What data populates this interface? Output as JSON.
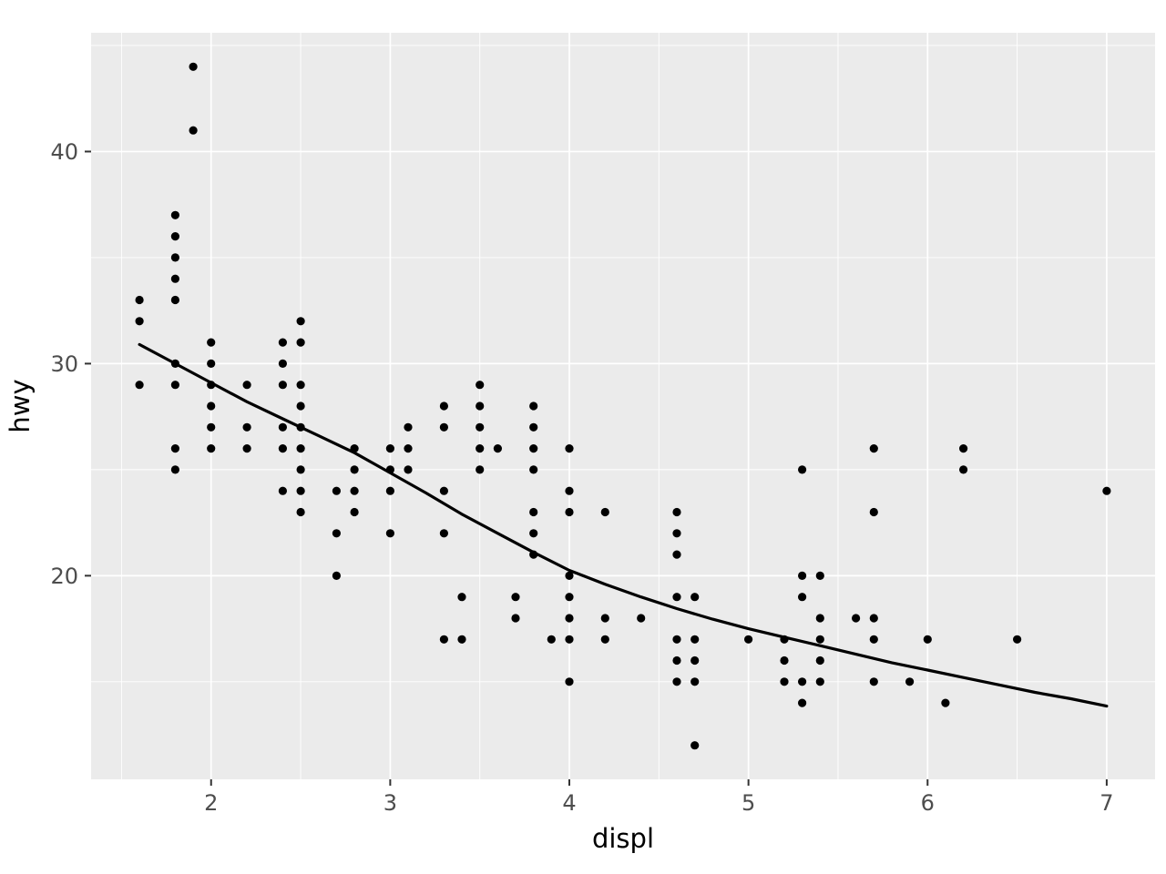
{
  "chart_data": {
    "type": "scatter",
    "title": "",
    "xlabel": "displ",
    "ylabel": "hwy",
    "x_ticks": [
      2,
      3,
      4,
      5,
      6,
      7
    ],
    "y_ticks": [
      20,
      30,
      40
    ],
    "x_minor_gridlines": [
      1.5,
      2.5,
      3.5,
      4.5,
      5.5,
      6.5
    ],
    "y_minor_gridlines": [
      15,
      25,
      35,
      45
    ],
    "xlim": [
      1.33,
      7.27
    ],
    "ylim": [
      10.4,
      45.6
    ],
    "grid": "white major and minor gridlines on gray panel",
    "legend": "none",
    "colors": {
      "panel_bg": "#EBEBEB",
      "gridline": "#FFFFFF",
      "point": "#000000",
      "smooth_line": "#000000",
      "tick_mark": "#333333",
      "tick_label": "#4D4D4D",
      "axis_title": "#000000",
      "outer_bg": "#FFFFFF"
    },
    "points": [
      [
        1.6,
        33
      ],
      [
        1.6,
        32
      ],
      [
        1.6,
        29
      ],
      [
        1.8,
        37
      ],
      [
        1.8,
        36
      ],
      [
        1.8,
        35
      ],
      [
        1.8,
        34
      ],
      [
        1.8,
        33
      ],
      [
        1.8,
        30
      ],
      [
        1.8,
        29
      ],
      [
        1.8,
        26
      ],
      [
        1.8,
        25
      ],
      [
        1.9,
        44
      ],
      [
        1.9,
        41
      ],
      [
        2.0,
        31
      ],
      [
        2.0,
        30
      ],
      [
        2.0,
        29
      ],
      [
        2.0,
        28
      ],
      [
        2.0,
        27
      ],
      [
        2.0,
        26
      ],
      [
        2.2,
        29
      ],
      [
        2.2,
        27
      ],
      [
        2.2,
        26
      ],
      [
        2.4,
        31
      ],
      [
        2.4,
        30
      ],
      [
        2.4,
        29
      ],
      [
        2.4,
        27
      ],
      [
        2.4,
        26
      ],
      [
        2.4,
        24
      ],
      [
        2.5,
        32
      ],
      [
        2.5,
        31
      ],
      [
        2.5,
        29
      ],
      [
        2.5,
        28
      ],
      [
        2.5,
        27
      ],
      [
        2.5,
        26
      ],
      [
        2.5,
        25
      ],
      [
        2.5,
        24
      ],
      [
        2.5,
        23
      ],
      [
        2.7,
        24
      ],
      [
        2.7,
        22
      ],
      [
        2.7,
        20
      ],
      [
        2.8,
        26
      ],
      [
        2.8,
        25
      ],
      [
        2.8,
        24
      ],
      [
        2.8,
        23
      ],
      [
        3.0,
        26
      ],
      [
        3.0,
        25
      ],
      [
        3.0,
        24
      ],
      [
        3.0,
        22
      ],
      [
        3.1,
        27
      ],
      [
        3.1,
        26
      ],
      [
        3.1,
        25
      ],
      [
        3.3,
        28
      ],
      [
        3.3,
        27
      ],
      [
        3.3,
        24
      ],
      [
        3.3,
        22
      ],
      [
        3.3,
        17
      ],
      [
        3.4,
        19
      ],
      [
        3.4,
        17
      ],
      [
        3.5,
        29
      ],
      [
        3.5,
        28
      ],
      [
        3.5,
        27
      ],
      [
        3.5,
        26
      ],
      [
        3.5,
        25
      ],
      [
        3.6,
        26
      ],
      [
        3.7,
        19
      ],
      [
        3.7,
        18
      ],
      [
        3.8,
        28
      ],
      [
        3.8,
        27
      ],
      [
        3.8,
        26
      ],
      [
        3.8,
        25
      ],
      [
        3.8,
        23
      ],
      [
        3.8,
        22
      ],
      [
        3.8,
        21
      ],
      [
        3.9,
        17
      ],
      [
        4.0,
        26
      ],
      [
        4.0,
        24
      ],
      [
        4.0,
        23
      ],
      [
        4.0,
        20
      ],
      [
        4.0,
        19
      ],
      [
        4.0,
        18
      ],
      [
        4.0,
        17
      ],
      [
        4.0,
        15
      ],
      [
        4.2,
        23
      ],
      [
        4.2,
        18
      ],
      [
        4.2,
        17
      ],
      [
        4.4,
        18
      ],
      [
        4.6,
        23
      ],
      [
        4.6,
        22
      ],
      [
        4.6,
        21
      ],
      [
        4.6,
        19
      ],
      [
        4.6,
        17
      ],
      [
        4.6,
        16
      ],
      [
        4.6,
        15
      ],
      [
        4.7,
        19
      ],
      [
        4.7,
        17
      ],
      [
        4.7,
        16
      ],
      [
        4.7,
        15
      ],
      [
        4.7,
        12
      ],
      [
        5.0,
        17
      ],
      [
        5.2,
        17
      ],
      [
        5.2,
        16
      ],
      [
        5.2,
        15
      ],
      [
        5.3,
        25
      ],
      [
        5.3,
        20
      ],
      [
        5.3,
        19
      ],
      [
        5.3,
        15
      ],
      [
        5.3,
        14
      ],
      [
        5.4,
        20
      ],
      [
        5.4,
        18
      ],
      [
        5.4,
        17
      ],
      [
        5.4,
        16
      ],
      [
        5.4,
        15
      ],
      [
        5.6,
        18
      ],
      [
        5.7,
        26
      ],
      [
        5.7,
        23
      ],
      [
        5.7,
        18
      ],
      [
        5.7,
        17
      ],
      [
        5.7,
        15
      ],
      [
        5.9,
        15
      ],
      [
        6.0,
        17
      ],
      [
        6.1,
        14
      ],
      [
        6.2,
        26
      ],
      [
        6.2,
        25
      ],
      [
        6.5,
        17
      ],
      [
        7.0,
        24
      ]
    ],
    "smooth_line": [
      [
        1.6,
        30.9
      ],
      [
        1.8,
        30.0
      ],
      [
        2.0,
        29.1
      ],
      [
        2.2,
        28.2
      ],
      [
        2.4,
        27.4
      ],
      [
        2.6,
        26.6
      ],
      [
        2.8,
        25.8
      ],
      [
        3.0,
        24.85
      ],
      [
        3.2,
        23.9
      ],
      [
        3.4,
        22.9
      ],
      [
        3.6,
        22.0
      ],
      [
        3.8,
        21.1
      ],
      [
        4.0,
        20.25
      ],
      [
        4.2,
        19.6
      ],
      [
        4.4,
        19.0
      ],
      [
        4.6,
        18.45
      ],
      [
        4.8,
        17.95
      ],
      [
        5.0,
        17.5
      ],
      [
        5.2,
        17.1
      ],
      [
        5.4,
        16.7
      ],
      [
        5.6,
        16.3
      ],
      [
        5.8,
        15.9
      ],
      [
        6.0,
        15.55
      ],
      [
        6.2,
        15.2
      ],
      [
        6.4,
        14.85
      ],
      [
        6.6,
        14.5
      ],
      [
        6.8,
        14.2
      ],
      [
        7.0,
        13.85
      ]
    ],
    "point_radius": 4.6,
    "smooth_line_width": 3.2
  }
}
